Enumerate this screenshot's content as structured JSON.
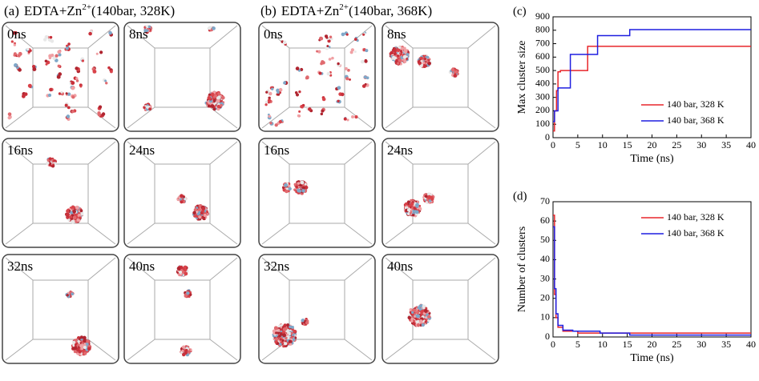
{
  "panels": [
    {
      "label": "(a)",
      "title_pre": "EDTA+Zn",
      "title_sup": "2+",
      "title_post": "(140bar, 328K)",
      "snapshots": [
        "0ns",
        "8ns",
        "16ns",
        "24ns",
        "32ns",
        "40ns"
      ]
    },
    {
      "label": "(b)",
      "title_pre": "EDTA+Zn",
      "title_sup": "2+",
      "title_post": "(140bar, 368K)",
      "snapshots": [
        "0ns",
        "8ns",
        "16ns",
        "24ns",
        "32ns",
        "40ns"
      ]
    }
  ],
  "chart_data": [
    {
      "type": "line",
      "panel": "(c)",
      "step": true,
      "xlabel": "Time (ns)",
      "ylabel": "Max cluster size",
      "xlim": [
        0,
        40
      ],
      "xticks": [
        0,
        5,
        10,
        15,
        20,
        25,
        30,
        35,
        40
      ],
      "ylim": [
        0,
        900
      ],
      "yticks": [
        0,
        100,
        200,
        300,
        400,
        500,
        600,
        700,
        800,
        900
      ],
      "legend": "right",
      "series": [
        {
          "name": "140 bar, 328 K",
          "color": "#e8262b",
          "x": [
            0,
            0.3,
            0.7,
            1,
            1.5,
            7,
            40
          ],
          "values": [
            50,
            200,
            350,
            490,
            500,
            680,
            680
          ]
        },
        {
          "name": "140 bar, 368 K",
          "color": "#1f1fe0",
          "x": [
            0,
            0.3,
            1,
            3.5,
            9,
            15.5,
            40
          ],
          "values": [
            120,
            200,
            370,
            620,
            760,
            805,
            805
          ]
        }
      ]
    },
    {
      "type": "line",
      "panel": "(d)",
      "step": true,
      "xlabel": "Time (ns)",
      "ylabel": "Number of clusters",
      "xlim": [
        0,
        40
      ],
      "xticks": [
        0,
        5,
        10,
        15,
        20,
        25,
        30,
        35,
        40
      ],
      "ylim": [
        0,
        70
      ],
      "yticks": [
        0,
        10,
        20,
        30,
        40,
        50,
        60,
        70
      ],
      "legend": "upper right",
      "series": [
        {
          "name": "140 bar, 328 K",
          "color": "#e8262b",
          "x": [
            0,
            0.3,
            0.6,
            1,
            2,
            5,
            40
          ],
          "values": [
            63,
            22,
            10,
            5,
            3,
            2,
            2
          ]
        },
        {
          "name": "140 bar, 368 K",
          "color": "#1f1fe0",
          "x": [
            0,
            0.3,
            0.6,
            1,
            2,
            4,
            9.5,
            15.5,
            40
          ],
          "values": [
            57,
            25,
            12,
            6,
            3.5,
            3,
            2,
            1,
            1
          ]
        }
      ]
    }
  ]
}
